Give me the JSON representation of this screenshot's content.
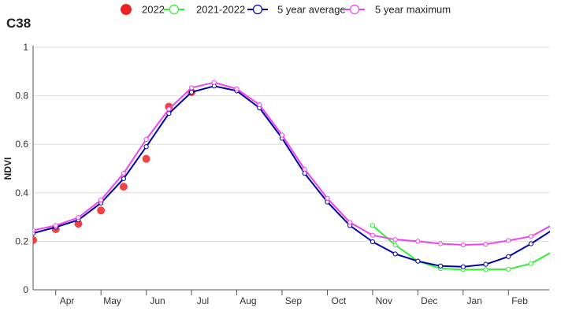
{
  "chart_data": {
    "type": "line",
    "title": "C38",
    "xlabel": "",
    "ylabel": "NDVI",
    "ylim": [
      0,
      1
    ],
    "yticks": [
      0,
      0.2,
      0.4,
      0.6,
      0.8,
      1
    ],
    "ytick_labels": [
      "0",
      "0.2",
      "0.4",
      "0.6",
      "0.8",
      "1"
    ],
    "x_range": [
      0.0,
      22.8
    ],
    "month_labels": [
      {
        "label": "Apr",
        "x": 1.5
      },
      {
        "label": "May",
        "x": 3.5
      },
      {
        "label": "Jun",
        "x": 5.5
      },
      {
        "label": "Jul",
        "x": 7.5
      },
      {
        "label": "Aug",
        "x": 9.5
      },
      {
        "label": "Sep",
        "x": 11.5
      },
      {
        "label": "Oct",
        "x": 13.5
      },
      {
        "label": "Nov",
        "x": 15.5
      },
      {
        "label": "Dec",
        "x": 17.5
      },
      {
        "label": "Jan",
        "x": 19.5
      },
      {
        "label": "Feb",
        "x": 21.5
      }
    ],
    "month_boundaries": [
      1,
      3,
      5,
      7,
      9,
      11,
      13,
      15,
      17,
      19,
      21
    ],
    "grid": true,
    "legend_position": "top-center",
    "series": [
      {
        "name": "2022",
        "style": "dots",
        "color": "#ee2222",
        "x": [
          0,
          1,
          2,
          3,
          4,
          5,
          6,
          7
        ],
        "values": [
          0.205,
          0.25,
          0.272,
          0.327,
          0.425,
          0.54,
          0.755,
          0.815
        ]
      },
      {
        "name": "2021-2022",
        "style": "line",
        "color": "#33ee33",
        "x": [
          15,
          16,
          17,
          18,
          19,
          20,
          21,
          22,
          23
        ],
        "values": [
          0.265,
          0.185,
          0.118,
          0.088,
          0.083,
          0.083,
          0.085,
          0.108,
          0.16
        ]
      },
      {
        "name": "5 year average",
        "style": "line",
        "color": "#0000aa",
        "x": [
          0,
          1,
          2,
          3,
          4,
          5,
          6,
          7,
          8,
          9,
          10,
          11,
          12,
          13,
          14,
          15,
          16,
          17,
          18,
          19,
          20,
          21,
          22,
          23
        ],
        "values": [
          0.233,
          0.258,
          0.288,
          0.358,
          0.458,
          0.59,
          0.727,
          0.815,
          0.84,
          0.82,
          0.75,
          0.625,
          0.48,
          0.362,
          0.265,
          0.198,
          0.148,
          0.118,
          0.098,
          0.095,
          0.105,
          0.137,
          0.19,
          0.25
        ]
      },
      {
        "name": "5 year maximum",
        "style": "line",
        "color": "#ee44ee",
        "x": [
          0,
          1,
          2,
          3,
          4,
          5,
          6,
          7,
          8,
          9,
          10,
          11,
          12,
          13,
          14,
          15,
          16,
          17,
          18,
          19,
          20,
          21,
          22,
          23
        ],
        "values": [
          0.245,
          0.265,
          0.298,
          0.37,
          0.48,
          0.62,
          0.745,
          0.833,
          0.855,
          0.828,
          0.763,
          0.638,
          0.497,
          0.377,
          0.278,
          0.225,
          0.207,
          0.2,
          0.19,
          0.185,
          0.188,
          0.203,
          0.22,
          0.27
        ]
      }
    ]
  }
}
